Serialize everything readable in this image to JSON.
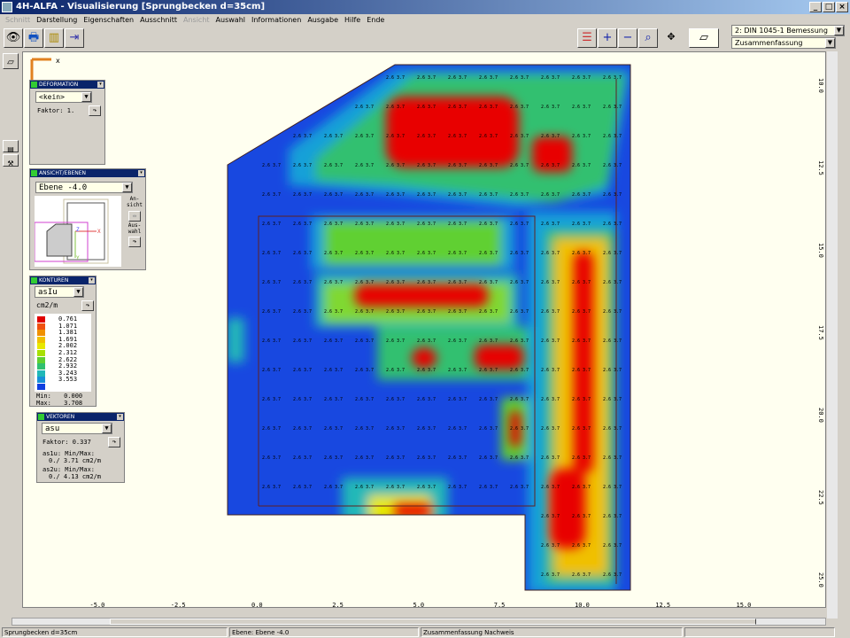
{
  "window": {
    "title": "4H-ALFA - Visualisierung [Sprungbecken d=35cm]"
  },
  "menu": [
    {
      "label": "Schnitt",
      "enabled": false
    },
    {
      "label": "Darstellung",
      "enabled": true
    },
    {
      "label": "Eigenschaften",
      "enabled": true
    },
    {
      "label": "Ausschnitt",
      "enabled": true
    },
    {
      "label": "Ansicht",
      "enabled": false
    },
    {
      "label": "Auswahl",
      "enabled": true
    },
    {
      "label": "Informationen",
      "enabled": true
    },
    {
      "label": "Ausgabe",
      "enabled": true
    },
    {
      "label": "Hilfe",
      "enabled": true
    },
    {
      "label": "Ende",
      "enabled": true
    }
  ],
  "toolbar": {
    "design_select": "2: DIN 1045-1 Bemessung",
    "result_select": "Zusammenfassung"
  },
  "axis": {
    "x_label": "x",
    "x_ticks": [
      "-5.0",
      "-2.5",
      "0.0",
      "2.5",
      "5.0",
      "7.5",
      "10.0",
      "12.5",
      "15.0"
    ],
    "y_ticks": [
      "10.0",
      "12.5",
      "15.0",
      "17.5",
      "20.0",
      "22.5",
      "25.0"
    ]
  },
  "deformation": {
    "title": "DEFORMATION",
    "select": "<kein>",
    "factor_label": "Faktor:",
    "factor_value": "1."
  },
  "ansicht": {
    "title": "ANSICHT/EBENEN",
    "select": "Ebene -4.0",
    "ansicht_label": "An-\nsicht",
    "auswahl_label": "Aus-\nwahl",
    "axis_z": "Z",
    "axis_x": "X",
    "axis_y": "Y"
  },
  "konturen": {
    "title": "KONTUREN",
    "select": "asIu",
    "unit": "cm2/m",
    "legend": [
      {
        "value": "0.761",
        "color": "#e00000"
      },
      {
        "value": "1.071",
        "color": "#f05010"
      },
      {
        "value": "1.381",
        "color": "#f09000"
      },
      {
        "value": "1.691",
        "color": "#f0c000"
      },
      {
        "value": "2.002",
        "color": "#e8e800"
      },
      {
        "value": "2.312",
        "color": "#a8e000"
      },
      {
        "value": "2.622",
        "color": "#60d030"
      },
      {
        "value": "2.932",
        "color": "#30c070"
      },
      {
        "value": "3.243",
        "color": "#20b8b8"
      },
      {
        "value": "3.553",
        "color": "#1890d8"
      },
      {
        "value": "",
        "color": "#1040e0"
      }
    ],
    "min_label": "Min:",
    "min_value": "0.000",
    "max_label": "Max:",
    "max_value": "3.708"
  },
  "vektoren": {
    "title": "VEKTOREN",
    "select": "asu",
    "factor": "Faktor: 0.337",
    "as1u": "as1u: Min/Max:",
    "as1u_val": "0./ 3.71 cm2/m",
    "as2u": "as2u: Min/Max:",
    "as2u_val": "0./ 4.13 cm2/m"
  },
  "cell_labels": [
    "2.6",
    "3.7"
  ],
  "status": {
    "model": "Sprungbecken d=35cm",
    "plane": "Ebene: Ebene -4.0",
    "mode": "Zusammenfassung Nachweis"
  }
}
